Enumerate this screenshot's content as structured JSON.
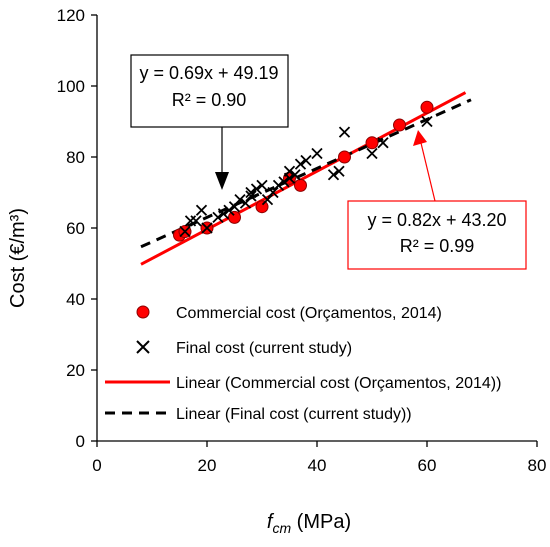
{
  "chart_data": {
    "type": "scatter",
    "xlabel_main": "f",
    "xlabel_sub": "cm",
    "xlabel_unit": " (MPa)",
    "ylabel": "Cost (€/m³)",
    "xlim": [
      0,
      80
    ],
    "ylim": [
      0,
      120
    ],
    "xticks": [
      0,
      20,
      40,
      60,
      80
    ],
    "yticks": [
      0,
      20,
      40,
      60,
      80,
      100,
      120
    ],
    "grid": false,
    "legend_position": "lower-left inside",
    "series": [
      {
        "name": "Commercial cost (Orçamentos, 2014)",
        "marker": "circle",
        "color": "#ff0000",
        "x": [
          15,
          16,
          20,
          25,
          30,
          35,
          37,
          45,
          50,
          55,
          60
        ],
        "y": [
          58,
          59,
          60,
          63,
          66,
          74,
          72,
          80,
          84,
          89,
          94
        ]
      },
      {
        "name": "Final cost (current study)",
        "marker": "x",
        "color": "#000000",
        "x": [
          16,
          17,
          18,
          19,
          20,
          22,
          23,
          24,
          25,
          26,
          27,
          28,
          28,
          29,
          30,
          31,
          32,
          33,
          34,
          35,
          35,
          36,
          37,
          38,
          40,
          43,
          44,
          45,
          50,
          52,
          60
        ],
        "y": [
          59,
          62,
          62,
          65,
          60,
          63,
          64,
          65,
          66,
          68,
          67,
          70,
          69,
          71,
          72,
          68,
          70,
          72,
          73,
          76,
          74,
          75,
          78,
          79,
          81,
          75,
          76,
          87,
          81,
          84,
          90
        ]
      }
    ],
    "trendlines": [
      {
        "name": "Linear (Commercial cost (Orçamentos, 2014))",
        "color": "#ff0000",
        "dash": "solid",
        "slope": 0.82,
        "intercept": 43.2,
        "x_range": [
          8,
          67
        ],
        "equation": "y = 0.82x + 43.20",
        "r2": "R² = 0.99"
      },
      {
        "name": "Linear (Final cost (current study))",
        "color": "#000000",
        "dash": "dashed",
        "slope": 0.69,
        "intercept": 49.19,
        "x_range": [
          8,
          68
        ],
        "equation": "y = 0.69x + 49.19",
        "r2": "R² = 0.90"
      }
    ]
  }
}
